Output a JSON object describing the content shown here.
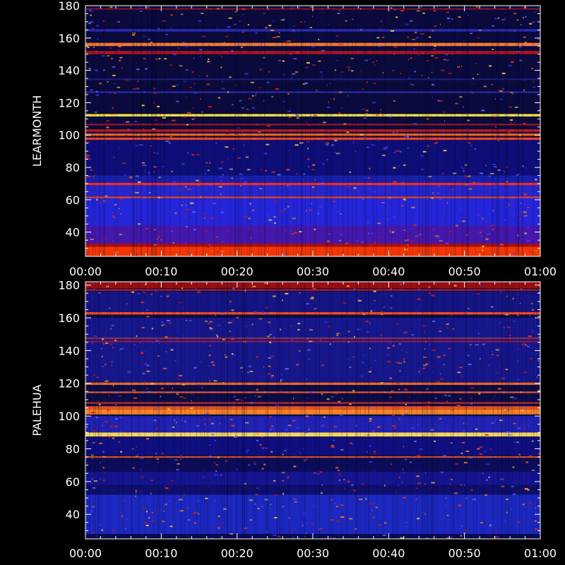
{
  "chart_data": [
    {
      "type": "heatmap",
      "ylabel": "LEARMONTH",
      "x_ticks": [
        "00:00",
        "00:10",
        "00:20",
        "00:30",
        "00:40",
        "00:50",
        "01:00"
      ],
      "y_ticks": [
        40,
        60,
        80,
        100,
        120,
        140,
        160,
        180
      ],
      "ylim": [
        25,
        180
      ],
      "xlim": [
        "00:00",
        "01:00"
      ],
      "background_color": "#0a0a3c",
      "bands": [
        {
          "y0": 25,
          "y1": 31,
          "color": "#ff3a00",
          "opacity": 0.95
        },
        {
          "y0": 31,
          "y1": 33,
          "color": "#d01010",
          "opacity": 0.8
        },
        {
          "y0": 33,
          "y1": 44,
          "color": "#5a1ed2",
          "opacity": 0.75
        },
        {
          "y0": 44,
          "y1": 61,
          "color": "#2a2af5",
          "opacity": 0.85
        },
        {
          "y0": 61,
          "y1": 62,
          "color": "#ff5020",
          "opacity": 0.9
        },
        {
          "y0": 62,
          "y1": 69,
          "color": "#2d2df0",
          "opacity": 0.8
        },
        {
          "y0": 69,
          "y1": 70.5,
          "color": "#ff3030",
          "opacity": 0.95
        },
        {
          "y0": 70.5,
          "y1": 75,
          "color": "#1e2ad8",
          "opacity": 0.7
        },
        {
          "y0": 75,
          "y1": 97,
          "color": "#1010a0",
          "opacity": 0.6
        },
        {
          "y0": 97,
          "y1": 98.5,
          "color": "#ff4a20",
          "opacity": 0.9
        },
        {
          "y0": 99.5,
          "y1": 101,
          "color": "#ff6a20",
          "opacity": 0.9
        },
        {
          "y0": 102,
          "y1": 103.5,
          "color": "#e02020",
          "opacity": 0.85
        },
        {
          "y0": 106,
          "y1": 107,
          "color": "#c81818",
          "opacity": 0.8
        },
        {
          "y0": 111.5,
          "y1": 113,
          "color": "#ffee40",
          "opacity": 0.95
        },
        {
          "y0": 126,
          "y1": 127,
          "color": "#3a3ae0",
          "opacity": 0.7
        },
        {
          "y0": 134,
          "y1": 135,
          "color": "#3030c0",
          "opacity": 0.5
        },
        {
          "y0": 150,
          "y1": 152,
          "color": "#c81818",
          "opacity": 0.85
        },
        {
          "y0": 155,
          "y1": 157,
          "color": "#ff8030",
          "opacity": 0.95
        },
        {
          "y0": 164,
          "y1": 165.5,
          "color": "#3a3ae8",
          "opacity": 0.7
        },
        {
          "y0": 177.5,
          "y1": 178.5,
          "color": "#c02020",
          "opacity": 0.6
        }
      ]
    },
    {
      "type": "heatmap",
      "ylabel": "PALEHUA",
      "x_ticks": [
        "00:00",
        "00:10",
        "00:20",
        "00:30",
        "00:40",
        "00:50",
        "01:00"
      ],
      "y_ticks": [
        40,
        60,
        80,
        100,
        120,
        140,
        160,
        180
      ],
      "ylim": [
        25,
        182
      ],
      "xlim": [
        "00:00",
        "01:00"
      ],
      "background_color": "#0c0c46",
      "bands": [
        {
          "y0": 25,
          "y1": 28,
          "color": "#0a0a50",
          "opacity": 0.9
        },
        {
          "y0": 28,
          "y1": 52,
          "color": "#2232e8",
          "opacity": 0.75
        },
        {
          "y0": 52,
          "y1": 58,
          "color": "#101070",
          "opacity": 0.9
        },
        {
          "y0": 58,
          "y1": 66,
          "color": "#1a1ab0",
          "opacity": 0.7
        },
        {
          "y0": 66,
          "y1": 74,
          "color": "#0c0c60",
          "opacity": 0.8
        },
        {
          "y0": 74.5,
          "y1": 75.5,
          "color": "#ff6020",
          "opacity": 0.8
        },
        {
          "y0": 76,
          "y1": 87,
          "color": "#1212a8",
          "opacity": 0.6
        },
        {
          "y0": 87.5,
          "y1": 90,
          "color": "#ffe060",
          "opacity": 0.95
        },
        {
          "y0": 90,
          "y1": 100,
          "color": "#2828d8",
          "opacity": 0.75
        },
        {
          "y0": 101,
          "y1": 104,
          "color": "#ff8a20",
          "opacity": 0.95
        },
        {
          "y0": 104,
          "y1": 106,
          "color": "#ff5a20",
          "opacity": 0.9
        },
        {
          "y0": 107.5,
          "y1": 108.5,
          "color": "#e03020",
          "opacity": 0.85
        },
        {
          "y0": 114,
          "y1": 115,
          "color": "#ff6030",
          "opacity": 0.9
        },
        {
          "y0": 119,
          "y1": 120.5,
          "color": "#ff7030",
          "opacity": 0.9
        },
        {
          "y0": 121,
          "y1": 160,
          "color": "#2020c8",
          "opacity": 0.55
        },
        {
          "y0": 145,
          "y1": 146,
          "color": "#d02020",
          "opacity": 0.6
        },
        {
          "y0": 147,
          "y1": 148,
          "color": "#e04020",
          "opacity": 0.6
        },
        {
          "y0": 162,
          "y1": 163.5,
          "color": "#ff5020",
          "opacity": 0.95
        },
        {
          "y0": 163.5,
          "y1": 176,
          "color": "#1a1aa0",
          "opacity": 0.7
        },
        {
          "y0": 176.5,
          "y1": 177.5,
          "color": "#e02020",
          "opacity": 0.8
        },
        {
          "y0": 178,
          "y1": 182,
          "color": "#a01010",
          "opacity": 0.95
        }
      ]
    }
  ]
}
